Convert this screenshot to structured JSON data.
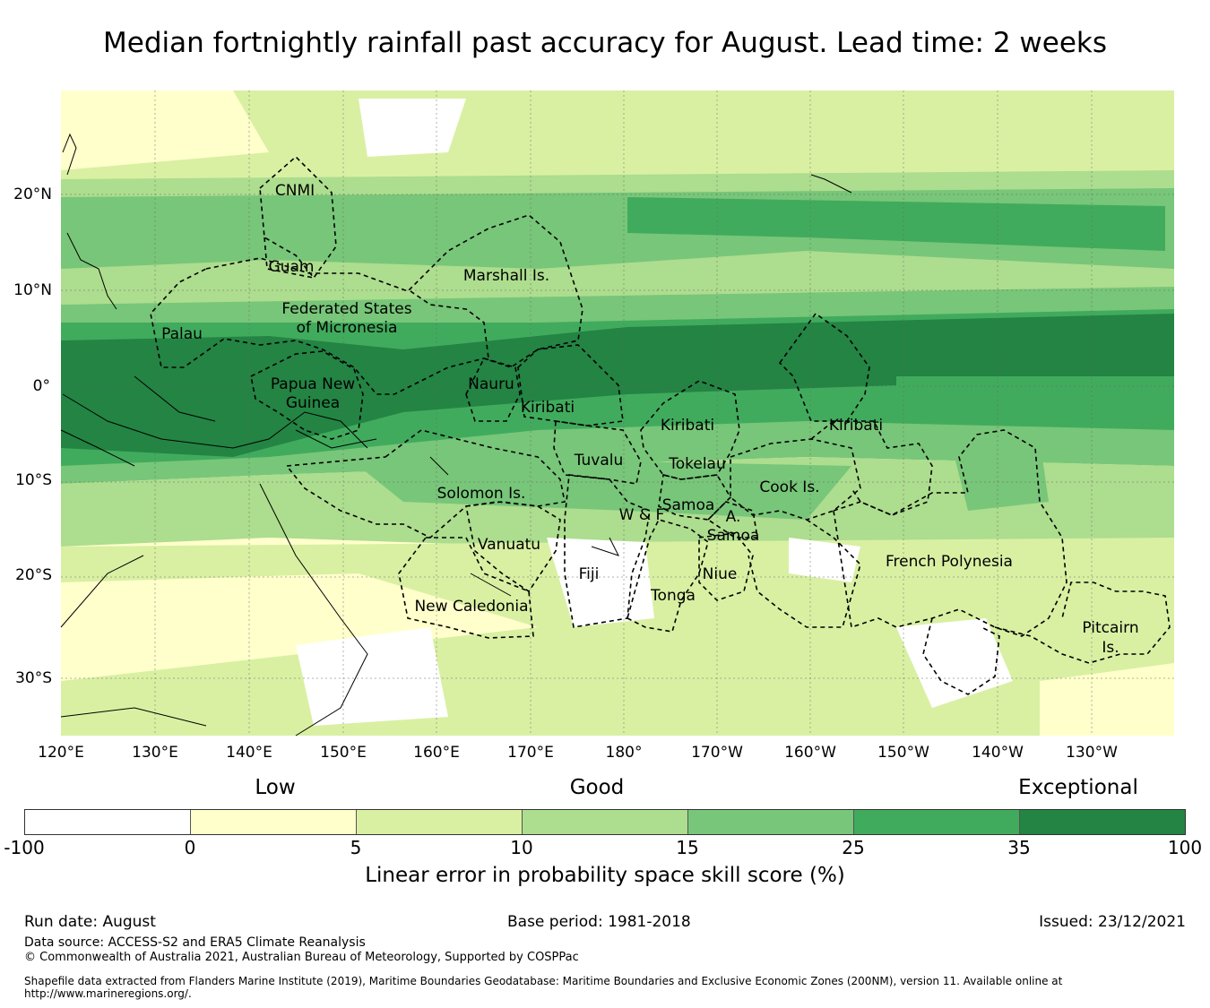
{
  "title": "Median fortnightly rainfall past accuracy for August. Lead time: 2 weeks",
  "map": {
    "lon_labels": [
      "120°E",
      "130°E",
      "140°E",
      "150°E",
      "160°E",
      "170°E",
      "180°",
      "170°W",
      "160°W",
      "150°W",
      "140°W",
      "130°W"
    ],
    "lat_labels": [
      "20°N",
      "10°N",
      "0°",
      "10°S",
      "20°S",
      "30°S"
    ],
    "regions": [
      "CNMI",
      "Guam",
      "Marshall Is.",
      "Federated States",
      "of Micronesia",
      "Palau",
      "Papua New",
      "Guinea",
      "Nauru",
      "Kiribati",
      "Kiribati",
      "Kiribati",
      "Tuvalu",
      "Tokelau",
      "Solomon Is.",
      "Samoa",
      "W & F",
      "A.",
      "Samoa",
      "Cook Is.",
      "Vanuatu",
      "Fiji",
      "Niue",
      "Tonga",
      "French Polynesia",
      "New Caledonia",
      "Pitcairn",
      "Is."
    ]
  },
  "legend": {
    "categories": [
      "Low",
      "Good",
      "Exceptional"
    ],
    "colors": [
      "#ffffff",
      "#ffffcc",
      "#d9f0a3",
      "#addd8e",
      "#78c679",
      "#41ab5d",
      "#238443"
    ],
    "ticks": [
      "-100",
      "0",
      "5",
      "10",
      "15",
      "25",
      "35",
      "100"
    ],
    "title": "Linear error in probability space skill score (%)"
  },
  "footer": {
    "run_date": "Run date: August",
    "base_period": "Base period: 1981-2018",
    "issued": "Issued: 23/12/2021",
    "data_source": "Data source: ACCESS-S2 and ERA5 Climate Reanalysis",
    "copyright": "© Commonwealth of Australia 2021, Australian Bureau of Meteorology, Supported by COSPPac",
    "shapefile": "Shapefile data extracted from Flanders Marine Institute (2019), Maritime Boundaries Geodatabase: Maritime Boundaries and Exclusive Economic Zones (200NM), version 11. Available online at http://www.marineregions.org/."
  }
}
